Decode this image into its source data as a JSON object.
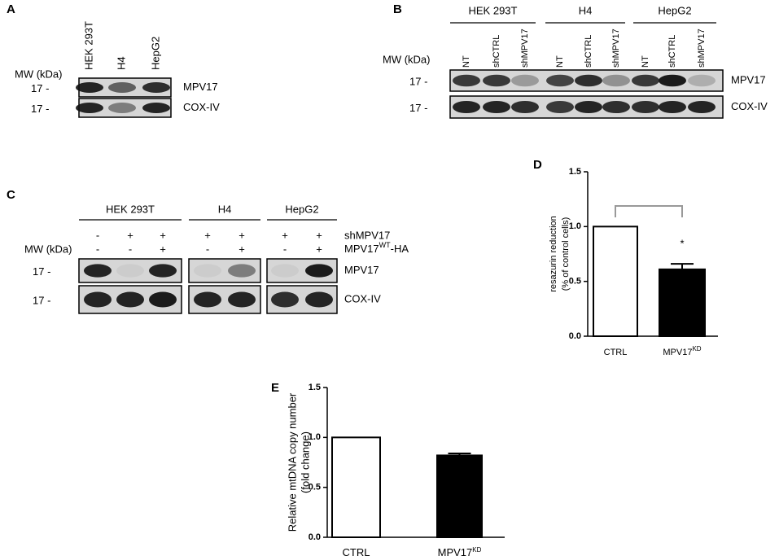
{
  "panels": {
    "A": {
      "label": "A",
      "lanes": [
        "HEK 293T",
        "H4",
        "HepG2"
      ],
      "mw_label": "MW (kDa)",
      "rows": [
        {
          "marker": "17 -",
          "protein": "MPV17"
        },
        {
          "marker": "17 -",
          "protein": "COX-IV"
        }
      ]
    },
    "B": {
      "label": "B",
      "mw_label": "MW (kDa)",
      "groups": [
        {
          "name": "HEK 293T",
          "lanes": [
            "NT",
            "shCTRL",
            "shMPV17"
          ]
        },
        {
          "name": "H4",
          "lanes": [
            "NT",
            "shCTRL",
            "shMPV17"
          ]
        },
        {
          "name": "HepG2",
          "lanes": [
            "NT",
            "shCTRL",
            "shMPV17"
          ]
        }
      ],
      "rows": [
        {
          "marker": "17 -",
          "protein": "MPV17"
        },
        {
          "marker": "17 -",
          "protein": "COX-IV"
        }
      ]
    },
    "C": {
      "label": "C",
      "mw_label": "MW (kDa)",
      "groups": [
        "HEK 293T",
        "H4",
        "HepG2"
      ],
      "conditions": [
        {
          "name": "shMPV17",
          "signs": [
            "-",
            "+",
            "+",
            "+",
            "+",
            "+",
            "+"
          ]
        },
        {
          "name": "MPV17",
          "name_sup": "WT",
          "name_suffix": "-HA",
          "signs": [
            "-",
            "-",
            "+",
            "-",
            "+",
            "-",
            "+"
          ]
        }
      ],
      "rows": [
        {
          "marker": "17 -",
          "protein": "MPV17"
        },
        {
          "marker": "17 -",
          "protein": "COX-IV"
        }
      ]
    }
  },
  "chart_data": [
    {
      "type": "bar",
      "panel_label": "D",
      "y_label": [
        "resazurin reduction",
        "(% of control cells)"
      ],
      "categories": [
        "CTRL",
        "MPV17"
      ],
      "category_superscripts": [
        null,
        "KD"
      ],
      "values": [
        1.0,
        0.61
      ],
      "errors": [
        null,
        0.05
      ],
      "colors": [
        "#ffffff",
        "#000000"
      ],
      "ylim": [
        0,
        1.5
      ],
      "yticks": [
        {
          "value": 0,
          "label": "0.0"
        },
        0.5,
        {
          "value": 1,
          "label": "1.0"
        },
        1.5
      ],
      "significance": "*"
    },
    {
      "type": "bar",
      "panel_label": "E",
      "y_label": [
        "Relative mtDNA copy number",
        "(fold change)"
      ],
      "categories": [
        "CTRL",
        "MPV17"
      ],
      "category_superscripts": [
        null,
        "KD"
      ],
      "values": [
        1.0,
        0.82
      ],
      "errors": [
        null,
        0.02
      ],
      "colors": [
        "#ffffff",
        "#000000"
      ],
      "ylim": [
        0,
        1.5
      ],
      "yticks": [
        {
          "value": 0,
          "label": "0.0"
        },
        0.5,
        {
          "value": 1,
          "label": "1.0"
        },
        1.5
      ]
    }
  ]
}
